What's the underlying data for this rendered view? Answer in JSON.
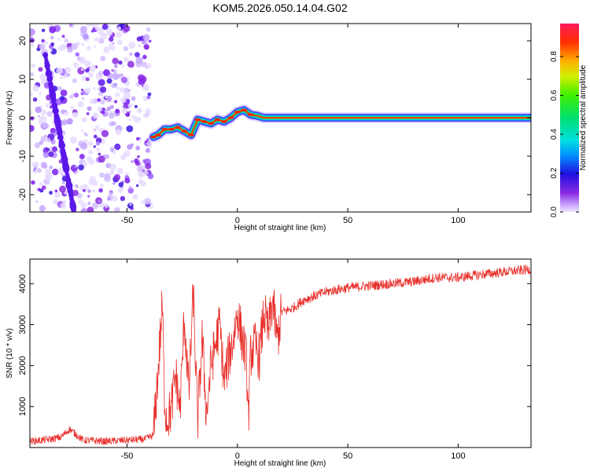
{
  "title": "KOM5.2026.050.14.04.G02",
  "chart_data": [
    {
      "type": "heatmap",
      "name": "spectrogram",
      "xlabel": "Height of straight line (km)",
      "ylabel": "Frequency (Hz)",
      "xlim": [
        -94,
        133
      ],
      "ylim": [
        -24.5,
        24.5
      ],
      "xticks": [
        -50,
        0,
        50,
        100
      ],
      "yticks": [
        -20,
        -10,
        0,
        10,
        20
      ],
      "colorbar": {
        "label": "Normalized spectral amplitude",
        "range": [
          0,
          0.97
        ],
        "ticks": [
          0.0,
          0.2,
          0.4,
          0.6,
          0.8
        ]
      },
      "noise_region_x": [
        -94,
        -39
      ],
      "signal_onset_x": -39,
      "ridge": {
        "x": [
          -38,
          -36,
          -33,
          -30,
          -27,
          -24,
          -21,
          -18,
          -15,
          -12,
          -9,
          -6,
          -3,
          0,
          3,
          6,
          9,
          12,
          15,
          20,
          30,
          50,
          80,
          100,
          133
        ],
        "freq": [
          -5,
          -4.5,
          -3,
          -3,
          -2.5,
          -3.5,
          -4.5,
          -0.5,
          -1,
          -1.5,
          -0.5,
          -1,
          0,
          1.5,
          2,
          0.8,
          0.5,
          0,
          0,
          0,
          0,
          0,
          0,
          0,
          0
        ]
      }
    },
    {
      "type": "line",
      "name": "snr",
      "xlabel": "Height of straight line (km)",
      "ylabel": "SNR (10 * v/v)",
      "xlim": [
        -94,
        133
      ],
      "ylim": [
        0,
        4600
      ],
      "xticks": [
        -50,
        0,
        50,
        100
      ],
      "yticks": [
        1000,
        2000,
        3000,
        4000
      ],
      "color": "#e8302c",
      "series": [
        {
          "name": "SNR",
          "x": [
            -94,
            -85,
            -80,
            -76,
            -70,
            -60,
            -50,
            -42,
            -38,
            -36,
            -34,
            -33,
            -32,
            -30,
            -28,
            -26,
            -24,
            -22,
            -20,
            -18,
            -16,
            -14,
            -12,
            -10,
            -8,
            -6,
            -4,
            -2,
            0,
            2,
            4,
            5,
            6,
            8,
            10,
            12,
            14,
            16,
            18,
            20,
            25,
            30,
            40,
            50,
            60,
            70,
            80,
            90,
            100,
            110,
            120,
            133
          ],
          "y": [
            150,
            200,
            250,
            450,
            180,
            150,
            180,
            200,
            300,
            1800,
            3500,
            1200,
            700,
            900,
            1800,
            900,
            3200,
            1300,
            3800,
            600,
            2700,
            800,
            2000,
            2500,
            3000,
            1600,
            2200,
            2600,
            3300,
            2700,
            2200,
            700,
            2300,
            2500,
            2200,
            3300,
            2800,
            3600,
            2600,
            3300,
            3400,
            3600,
            3800,
            3900,
            3950,
            4000,
            4050,
            4150,
            4150,
            4220,
            4280,
            4350
          ]
        }
      ]
    }
  ]
}
